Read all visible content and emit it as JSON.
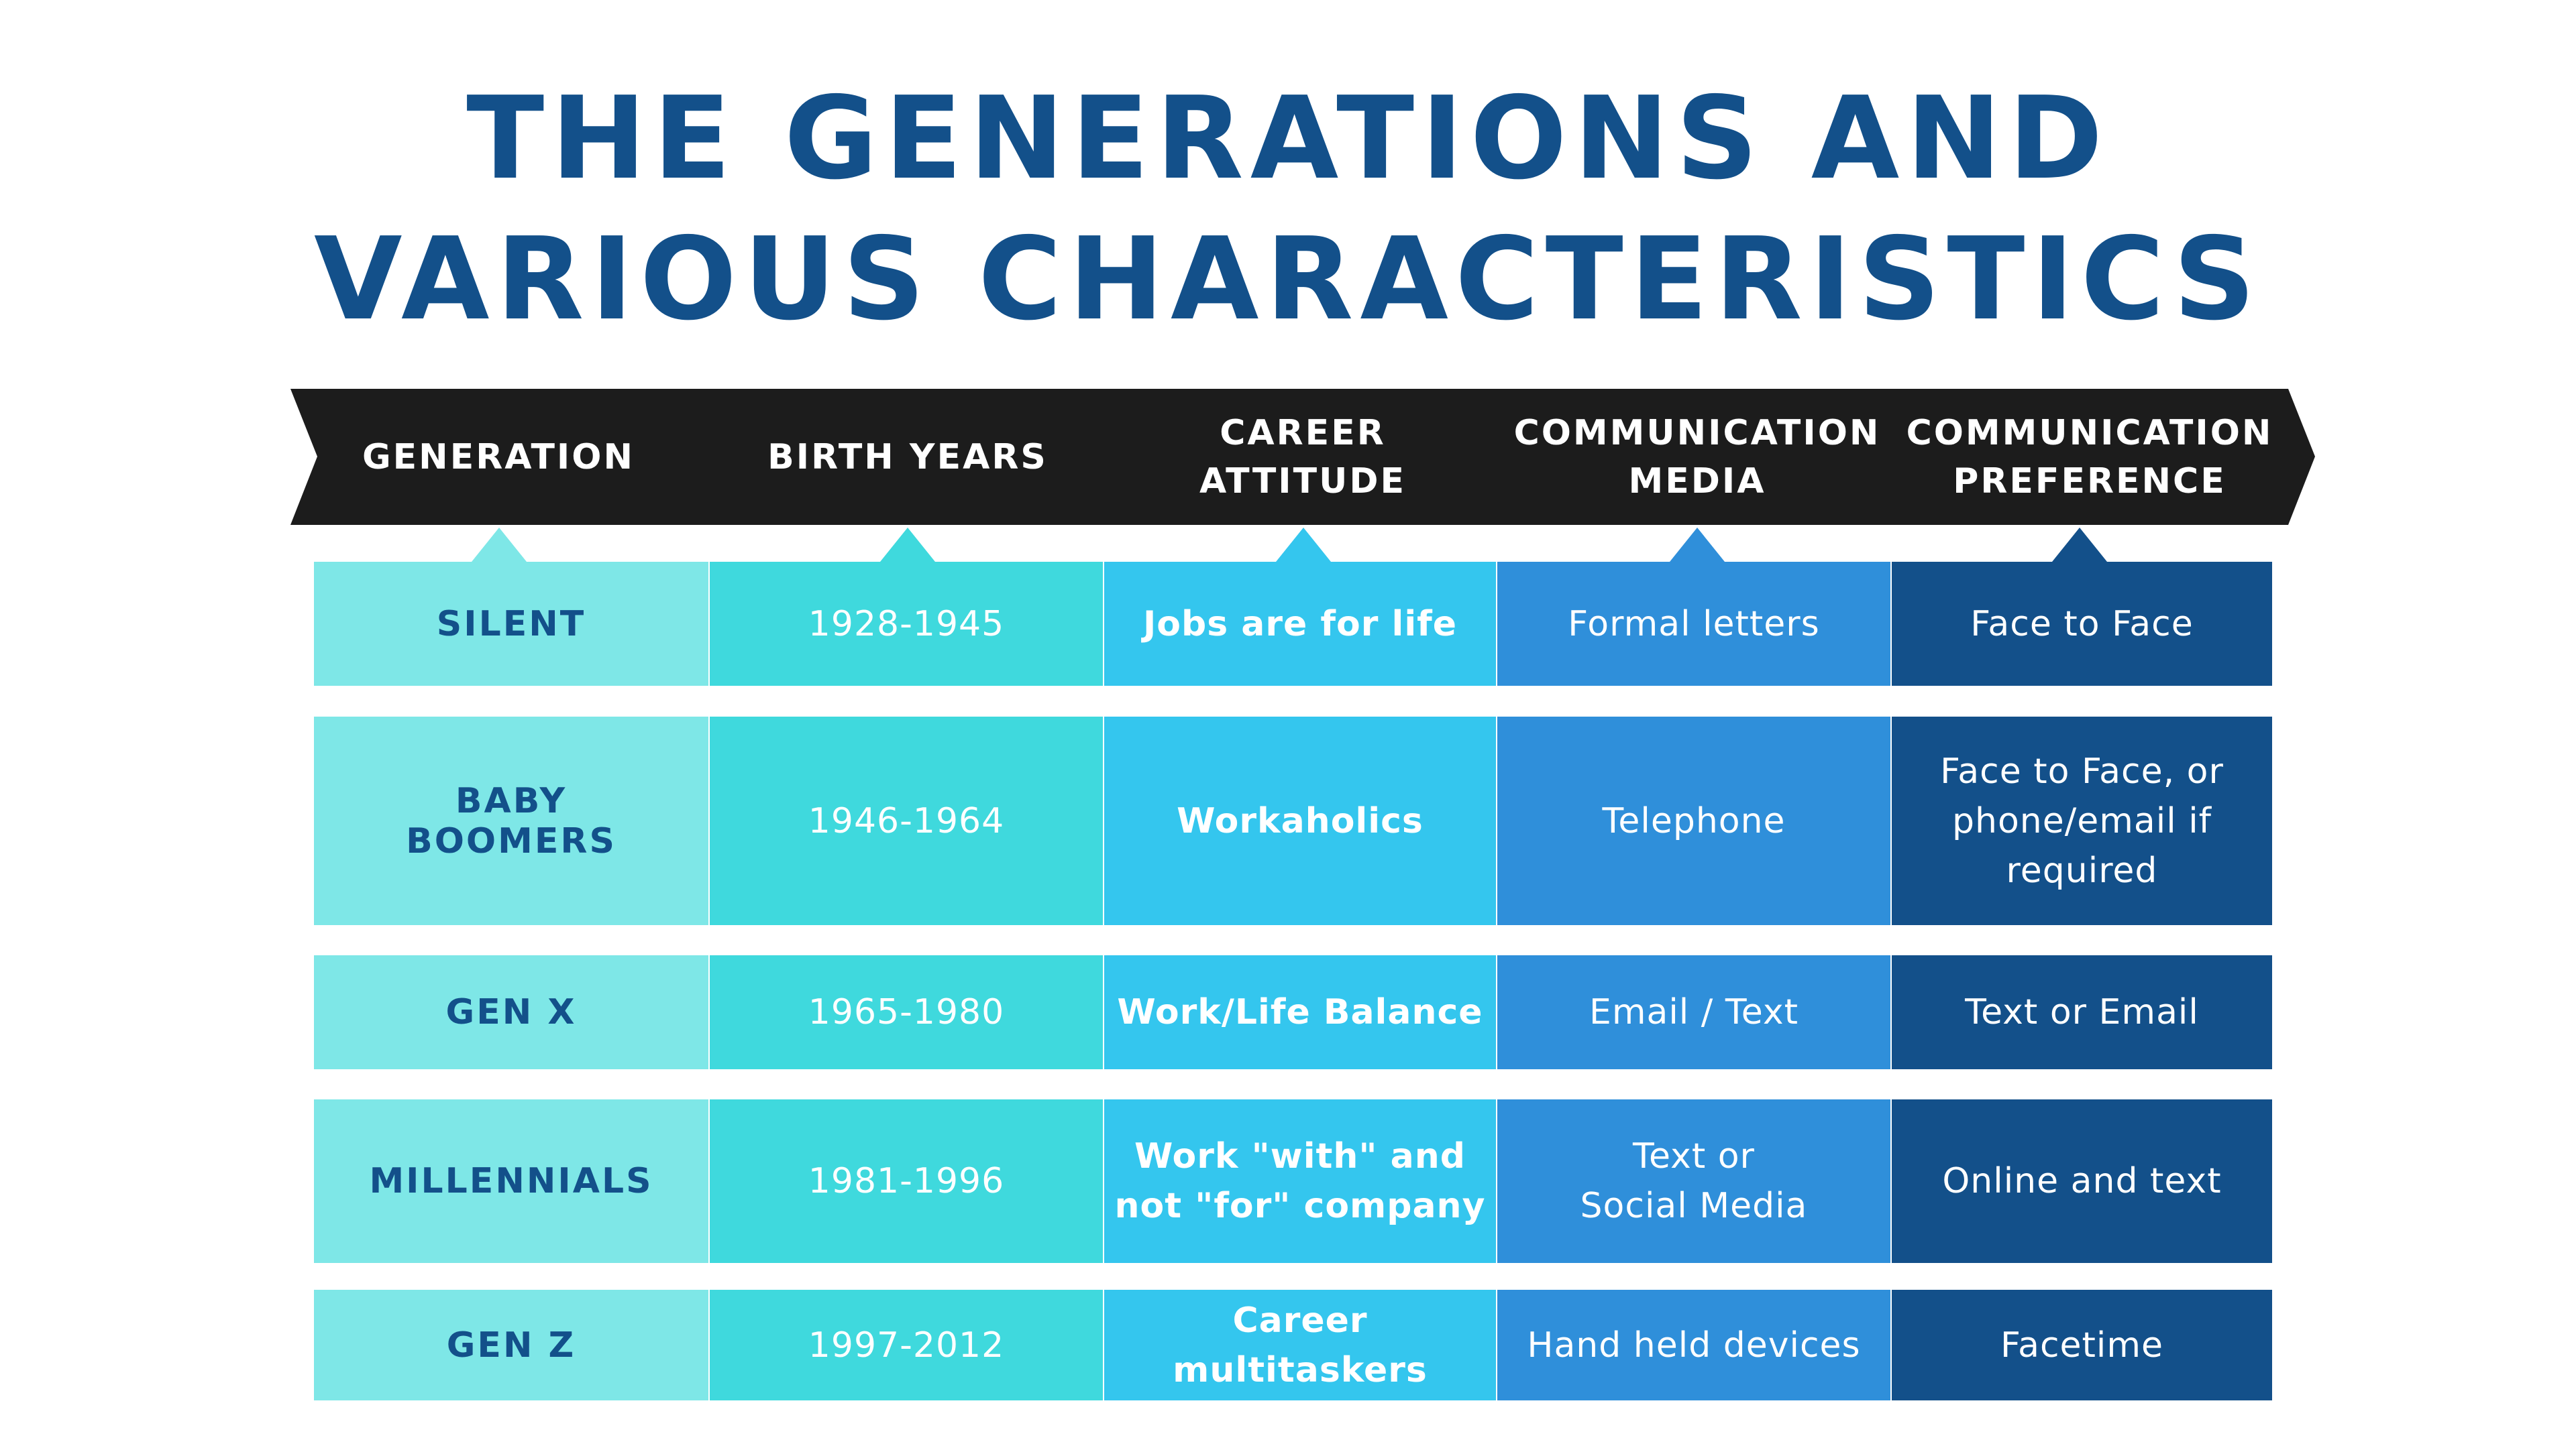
{
  "title": {
    "line1": "THE GENERATIONS AND",
    "line2": "VARIOUS CHARACTERISTICS"
  },
  "colors": {
    "title": "#13508a",
    "header_band": "#1c1c1c",
    "generation_column": "#7ee7e7",
    "birth_years_column": "#3fd9dd",
    "career_attitude_column": "#34c6ee",
    "communication_media_column": "#2f8fda",
    "communication_preference_column": "#13508a"
  },
  "headers": [
    "GENERATION",
    "BIRTH YEARS",
    "CAREER\nATTITUDE",
    "COMMUNICATION\nMEDIA",
    "COMMUNICATION\nPREFERENCE"
  ],
  "rows": [
    [
      "SILENT",
      "1928-1945",
      "Jobs are for life",
      "Formal letters",
      "Face to Face"
    ],
    [
      "BABY\nBOOMERS",
      "1946-1964",
      "Workaholics",
      "Telephone",
      "Face to Face, or\nphone/email if\nrequired"
    ],
    [
      "GEN X",
      "1965-1980",
      "Work/Life Balance",
      "Email / Text",
      "Text or Email"
    ],
    [
      "MILLENNIALS",
      "1981-1996",
      "Work \"with\" and\nnot \"for\" company",
      "Text or\nSocial Media",
      "Online and text"
    ],
    [
      "GEN Z",
      "1997-2012",
      "Career multitaskers",
      "Hand held devices",
      "Facetime"
    ]
  ]
}
